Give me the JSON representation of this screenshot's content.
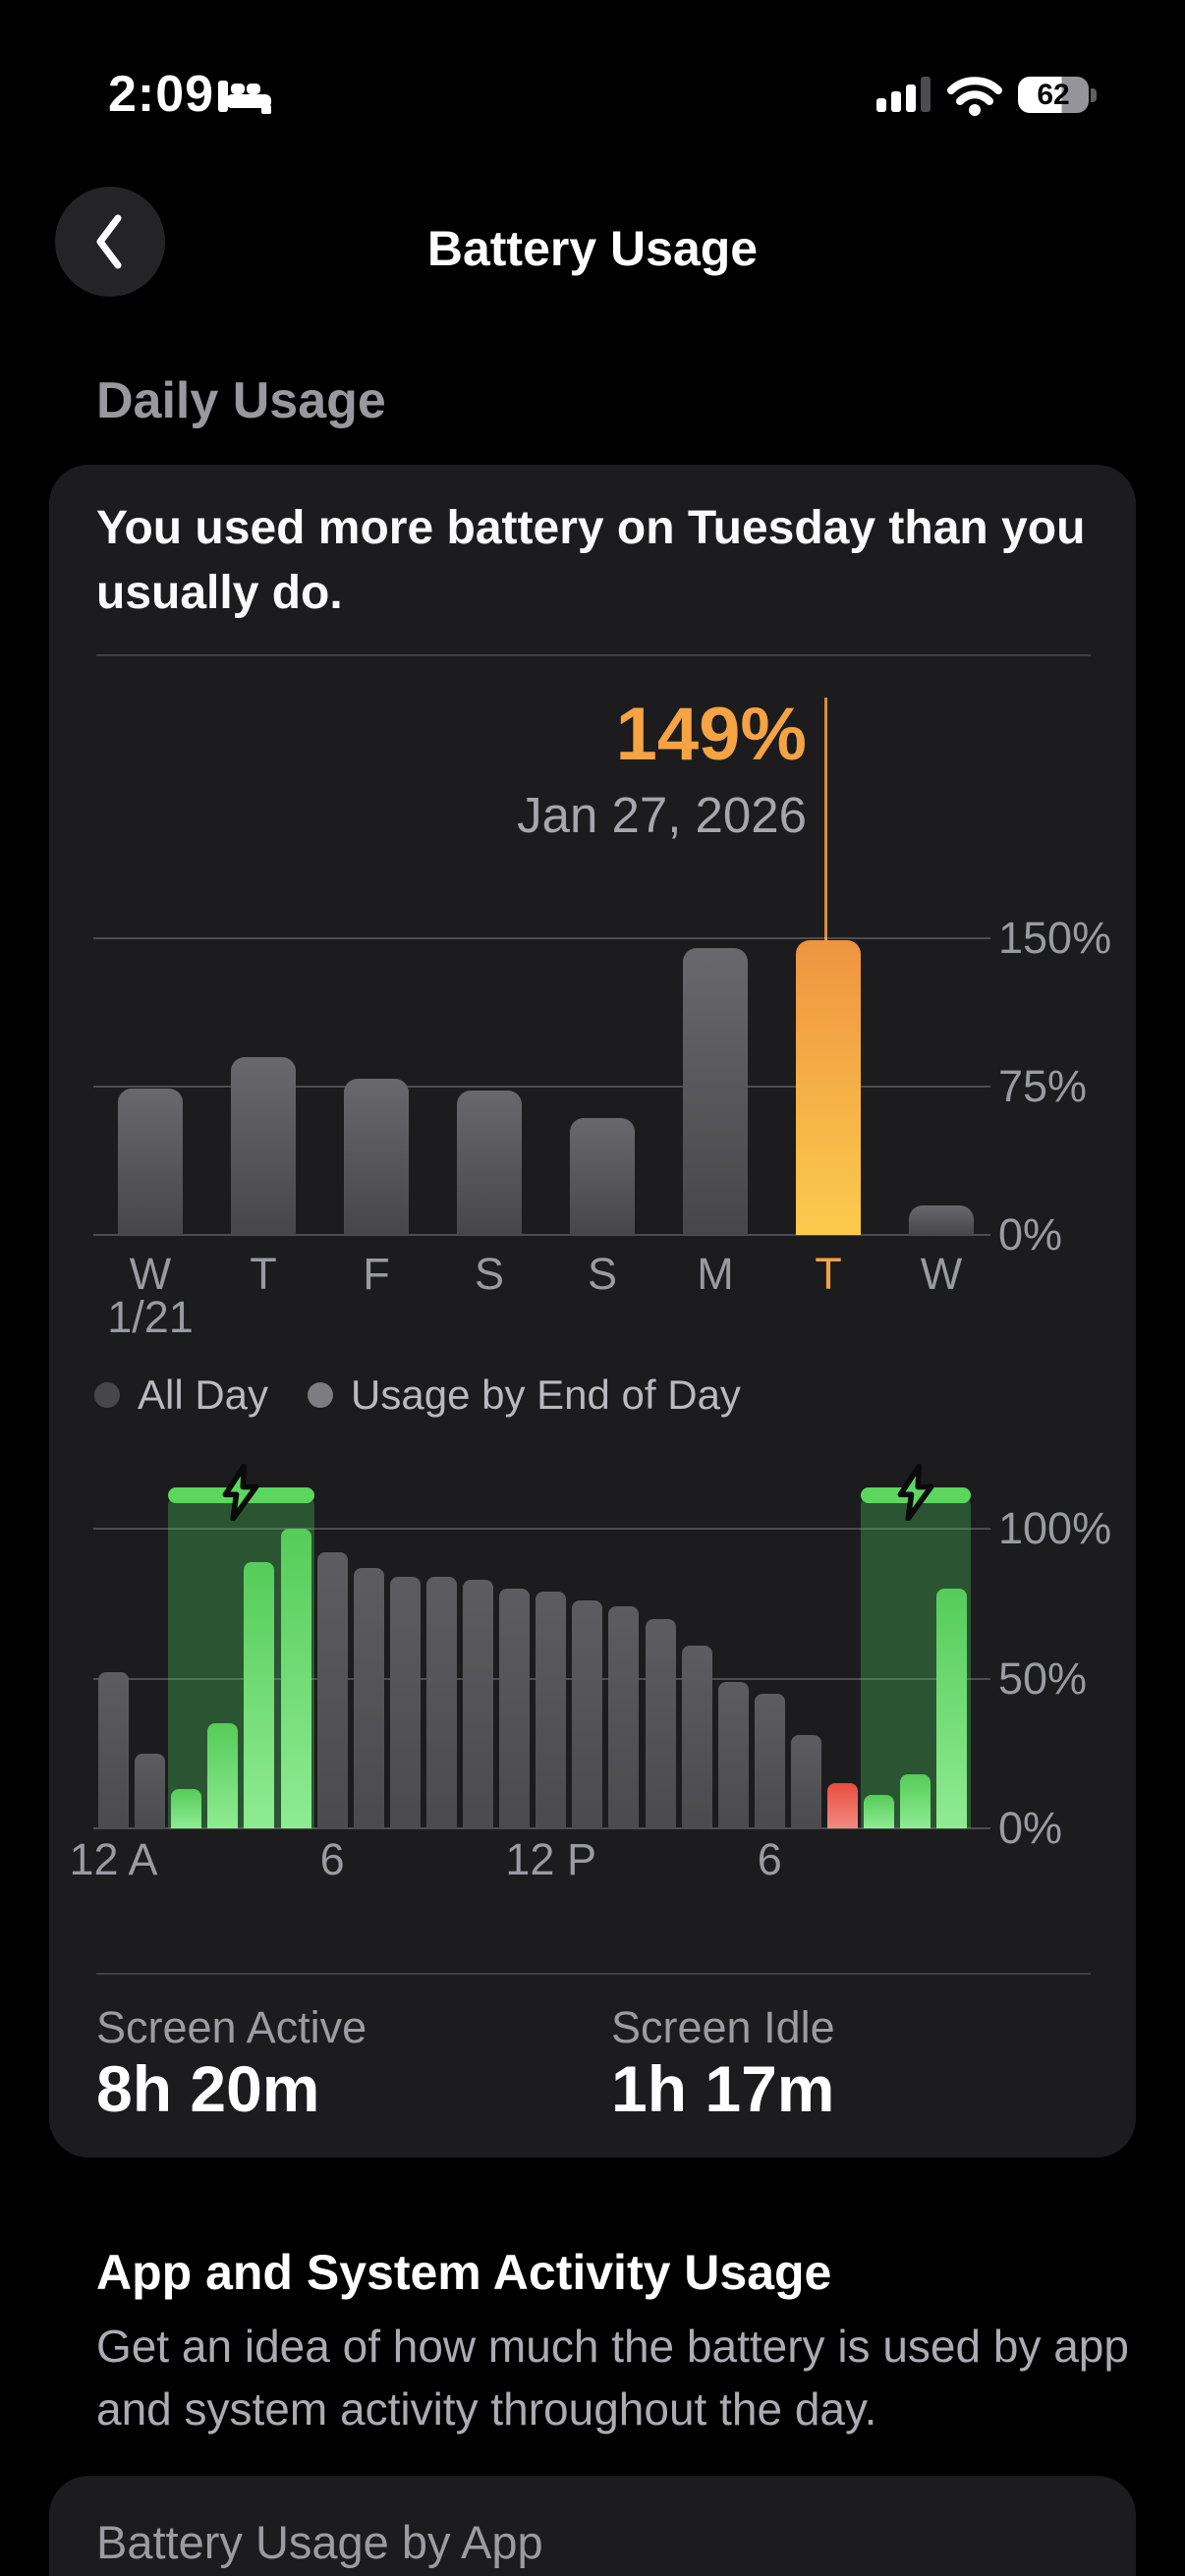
{
  "status_bar": {
    "time": "2:09",
    "battery_percent": "62"
  },
  "nav": {
    "title": "Battery Usage"
  },
  "sections": {
    "daily_usage": "Daily Usage"
  },
  "insight_card": {
    "message": "You used more battery on Tuesday than you usually do.",
    "screen_active_label": "Screen Active",
    "screen_active_value": "8h 20m",
    "screen_idle_label": "Screen Idle",
    "screen_idle_value": "1h 17m"
  },
  "chart_data": [
    {
      "type": "bar",
      "title": "Daily battery usage by day",
      "categories": [
        "W",
        "T",
        "F",
        "S",
        "S",
        "M",
        "T",
        "W"
      ],
      "values": [
        74,
        90,
        79,
        73,
        59,
        145,
        149,
        15
      ],
      "first_category_date": "1/21",
      "selected_index": 6,
      "selected_label": "149%",
      "selected_date": "Jan 27, 2026",
      "y_ticks": [
        "150%",
        "75%",
        "0%"
      ],
      "y_tick_values": [
        150,
        75,
        0
      ],
      "ylim": [
        0,
        150
      ],
      "grid": true,
      "legend": [
        "All Day",
        "Usage by End of Day"
      ],
      "legend_position": "below"
    },
    {
      "type": "bar",
      "title": "Battery level by hour",
      "x_hours": [
        0,
        1,
        2,
        3,
        4,
        5,
        6,
        7,
        8,
        9,
        10,
        11,
        12,
        13,
        14,
        15,
        16,
        17,
        18,
        19,
        20,
        21,
        22,
        23
      ],
      "values": [
        52,
        25,
        13,
        35,
        89,
        100,
        92,
        87,
        84,
        84,
        83,
        80,
        79,
        76,
        74,
        70,
        61,
        49,
        45,
        31,
        15,
        11,
        18,
        80
      ],
      "bar_kinds": [
        "gray",
        "gray",
        "green",
        "green",
        "green",
        "green",
        "gray",
        "gray",
        "gray",
        "gray",
        "gray",
        "gray",
        "gray",
        "gray",
        "gray",
        "gray",
        "gray",
        "gray",
        "gray",
        "gray",
        "red",
        "green",
        "green",
        "green"
      ],
      "charging_regions": [
        {
          "start_hour": 2,
          "end_hour": 5
        },
        {
          "start_hour": 21,
          "end_hour": 23
        }
      ],
      "x_ticks": [
        {
          "index": 0,
          "label": "12 A"
        },
        {
          "index": 6,
          "label": "6"
        },
        {
          "index": 12,
          "label": "12 P"
        },
        {
          "index": 18,
          "label": "6"
        }
      ],
      "y_ticks": [
        "100%",
        "50%",
        "0%"
      ],
      "y_tick_values": [
        100,
        50,
        0
      ],
      "ylim": [
        0,
        100
      ],
      "grid": true
    }
  ],
  "activity_section": {
    "heading": "App and System Activity Usage",
    "description": "Get an idea of how much the battery is used by app and system activity throughout the day.",
    "card_title": "Battery Usage by App"
  },
  "icons": [
    "bed-icon",
    "cellular-signal-icon",
    "wifi-icon",
    "battery-icon",
    "back-chevron-icon",
    "charging-bolt-icon",
    "legend-dot"
  ],
  "colors": {
    "accent_orange": "#f5a343",
    "bar_orange_top": "#ee9440",
    "bar_orange_bottom": "#fbcb4d",
    "charge_green": "#5bd75e",
    "low_battery_red": "#ec5448",
    "card_background": "#1c1c1e",
    "page_background": "#000000",
    "secondary_text": "#9a9aa1"
  }
}
